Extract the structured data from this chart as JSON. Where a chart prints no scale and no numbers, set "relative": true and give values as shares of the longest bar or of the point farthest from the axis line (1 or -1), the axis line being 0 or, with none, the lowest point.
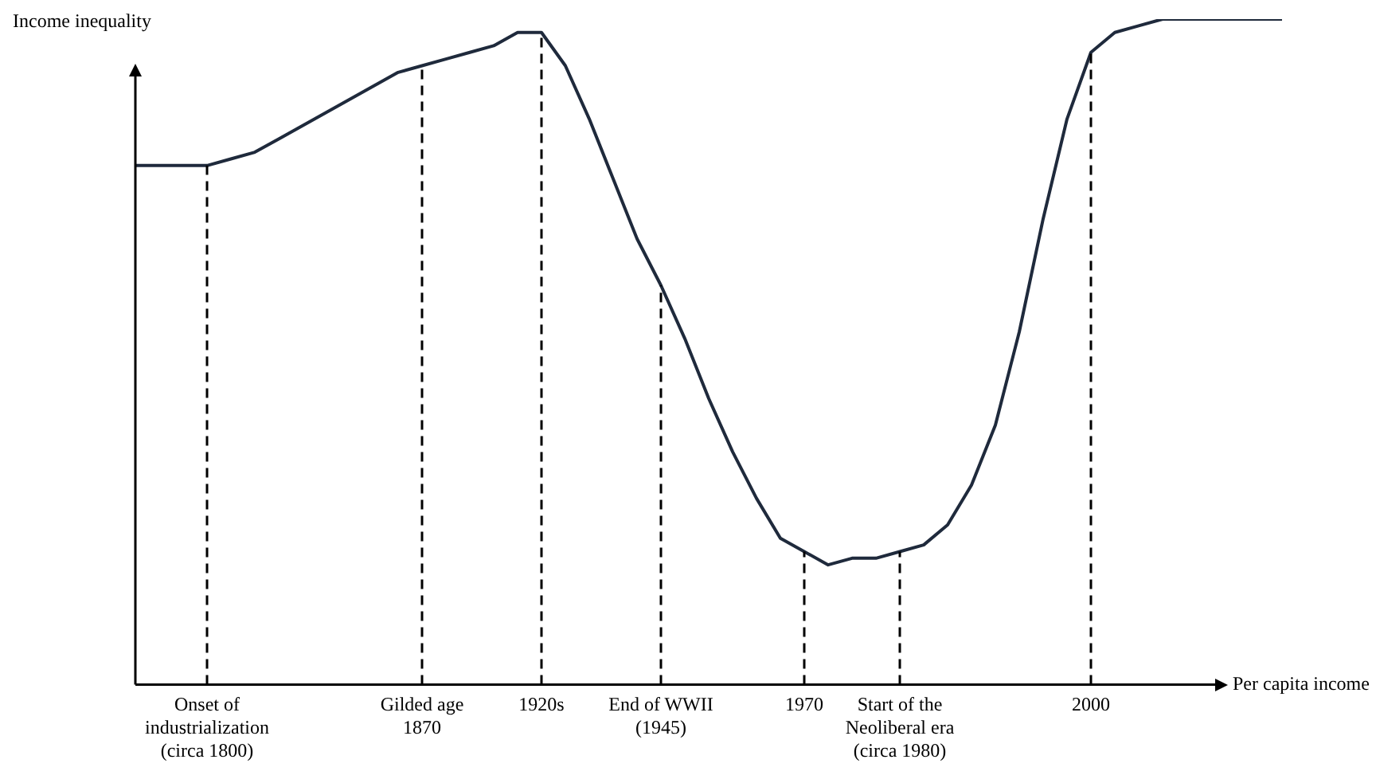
{
  "chart_data": {
    "type": "line",
    "relative": true,
    "xlabel": "Per capita income",
    "ylabel": "Income inequality",
    "categories": [
      null,
      null,
      null,
      "Onset of\nindustrialization\n(circa 1800)",
      null,
      null,
      null,
      null,
      null,
      null,
      null,
      null,
      "Gilded age\n1870",
      null,
      null,
      null,
      null,
      "1920s",
      null,
      null,
      null,
      null,
      "End of WWII\n(1945)",
      null,
      null,
      null,
      null,
      null,
      "1970",
      null,
      null,
      null,
      "Start of the\nNeoliberal era\n(circa 1980)",
      null,
      null,
      null,
      null,
      null,
      null,
      null,
      "2000",
      null,
      null,
      null,
      null,
      null,
      null,
      null,
      null
    ],
    "series": [
      {
        "color": "#1f2a3c",
        "values": [
          0.78,
          0.78,
          0.78,
          0.78,
          0.79,
          0.8,
          0.82,
          0.84,
          0.86,
          0.88,
          0.9,
          0.92,
          0.93,
          0.94,
          0.95,
          0.96,
          0.98,
          0.98,
          0.93,
          0.85,
          0.76,
          0.67,
          0.6,
          0.52,
          0.43,
          0.35,
          0.28,
          0.22,
          0.2,
          0.18,
          0.19,
          0.19,
          0.2,
          0.21,
          0.24,
          0.3,
          0.39,
          0.53,
          0.7,
          0.85,
          0.95,
          0.98,
          0.99,
          1,
          1,
          1,
          1,
          1,
          1
        ]
      }
    ],
    "ref_lines": [
      {
        "axis": "x",
        "value": "Onset of\nindustrialization\n(circa 1800)",
        "line_style": "dashed"
      },
      {
        "axis": "x",
        "value": "Gilded age\n1870",
        "line_style": "dashed"
      },
      {
        "axis": "x",
        "value": "1920s",
        "line_style": "dashed"
      },
      {
        "axis": "x",
        "value": "End of WWII\n(1945)",
        "line_style": "dashed"
      },
      {
        "axis": "x",
        "value": "1970",
        "line_style": "dashed"
      },
      {
        "axis": "x",
        "value": "Start of the\nNeoliberal era\n(circa 1980)",
        "line_style": "dashed"
      },
      {
        "axis": "x",
        "value": "2000",
        "line_style": "dashed"
      }
    ],
    "grid": false,
    "legend": false,
    "marker": "none",
    "line_style": "solid"
  }
}
